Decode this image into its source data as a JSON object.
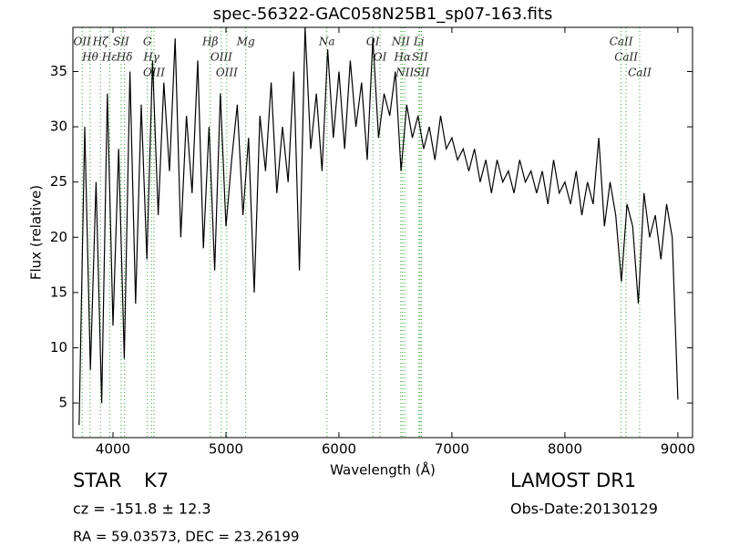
{
  "chart_data": {
    "type": "line",
    "title": "spec-56322-GAC058N25B1_sp07-163.fits",
    "x_label": "Wavelength (Å)",
    "y_label": "Flux (relative)",
    "xlim": [
      3645,
      9130
    ],
    "ylim": [
      1.87,
      39
    ],
    "xticks": [
      4000,
      5000,
      6000,
      7000,
      8000,
      9000
    ],
    "yticks": [
      5,
      10,
      15,
      20,
      25,
      30,
      35
    ],
    "color": "#000000",
    "line_color": "#2ca02c",
    "x": [
      3700,
      3750,
      3800,
      3850,
      3900,
      3950,
      4000,
      4050,
      4100,
      4150,
      4200,
      4250,
      4300,
      4350,
      4400,
      4450,
      4500,
      4550,
      4600,
      4650,
      4700,
      4750,
      4800,
      4850,
      4900,
      4950,
      5000,
      5050,
      5100,
      5150,
      5200,
      5250,
      5300,
      5350,
      5400,
      5450,
      5500,
      5550,
      5600,
      5650,
      5700,
      5750,
      5800,
      5850,
      5900,
      5950,
      6000,
      6050,
      6100,
      6150,
      6200,
      6250,
      6300,
      6350,
      6400,
      6450,
      6500,
      6550,
      6600,
      6650,
      6700,
      6750,
      6800,
      6850,
      6900,
      6950,
      7000,
      7050,
      7100,
      7150,
      7200,
      7250,
      7300,
      7350,
      7400,
      7450,
      7500,
      7550,
      7600,
      7650,
      7700,
      7750,
      7800,
      7850,
      7900,
      7950,
      8000,
      8050,
      8100,
      8150,
      8200,
      8250,
      8300,
      8350,
      8400,
      8450,
      8500,
      8550,
      8600,
      8650,
      8700,
      8750,
      8800,
      8850,
      8900,
      8950,
      9000
    ],
    "values": [
      3,
      30,
      8,
      25,
      5,
      33,
      12,
      28,
      9,
      35,
      14,
      32,
      18,
      36,
      22,
      34,
      26,
      38,
      20,
      31,
      24,
      36,
      19,
      30,
      17,
      33,
      21,
      27,
      32,
      22,
      29,
      15,
      31,
      26,
      34,
      24,
      30,
      25,
      35,
      17,
      39,
      28,
      33,
      26,
      37,
      29,
      35,
      28,
      36,
      30,
      34,
      27,
      38,
      29,
      33,
      31,
      35,
      26,
      32,
      29,
      31,
      28,
      30,
      27,
      31,
      28,
      29,
      27,
      28,
      26,
      28,
      25,
      27,
      24,
      27,
      25,
      26,
      24,
      27,
      25,
      26,
      24,
      26,
      23,
      27,
      24,
      25,
      23,
      26,
      22,
      25,
      23,
      29,
      21,
      25,
      22,
      16,
      23,
      21,
      14,
      24,
      20,
      22,
      18,
      23,
      20,
      5.3
    ],
    "lines": [
      {
        "label": "OII",
        "wavelength": 3727
      },
      {
        "label": "Hθ",
        "wavelength": 3798
      },
      {
        "label": "Hζ",
        "wavelength": 3889
      },
      {
        "label": "Hε",
        "wavelength": 3970
      },
      {
        "label": "SII",
        "wavelength": 4072
      },
      {
        "label": "Hδ",
        "wavelength": 4102
      },
      {
        "label": "G",
        "wavelength": 4304
      },
      {
        "label": "Hγ",
        "wavelength": 4340
      },
      {
        "label": "OIII",
        "wavelength": 4363
      },
      {
        "label": "Hβ",
        "wavelength": 4861
      },
      {
        "label": "OIII",
        "wavelength": 4959
      },
      {
        "label": "OIII",
        "wavelength": 5007
      },
      {
        "label": "Mg",
        "wavelength": 5175
      },
      {
        "label": "Na",
        "wavelength": 5893
      },
      {
        "label": "OI",
        "wavelength": 6300
      },
      {
        "label": "OI",
        "wavelength": 6364
      },
      {
        "label": "NII",
        "wavelength": 6548
      },
      {
        "label": "Hα",
        "wavelength": 6563
      },
      {
        "label": "NII",
        "wavelength": 6583
      },
      {
        "label": "Li",
        "wavelength": 6708
      },
      {
        "label": "SII",
        "wavelength": 6717
      },
      {
        "label": "SII",
        "wavelength": 6731
      },
      {
        "label": "CaII",
        "wavelength": 8498
      },
      {
        "label": "CaII",
        "wavelength": 8542
      },
      {
        "label": "CaII",
        "wavelength": 8662
      }
    ],
    "annotations": {
      "class": "STAR",
      "subclass": "K7",
      "cz": "cz = -151.8 ± 12.3",
      "coords": "RA = 59.03573, DEC = 23.26199",
      "survey": "LAMOST DR1",
      "obs_date": "Obs-Date:20130129"
    }
  }
}
